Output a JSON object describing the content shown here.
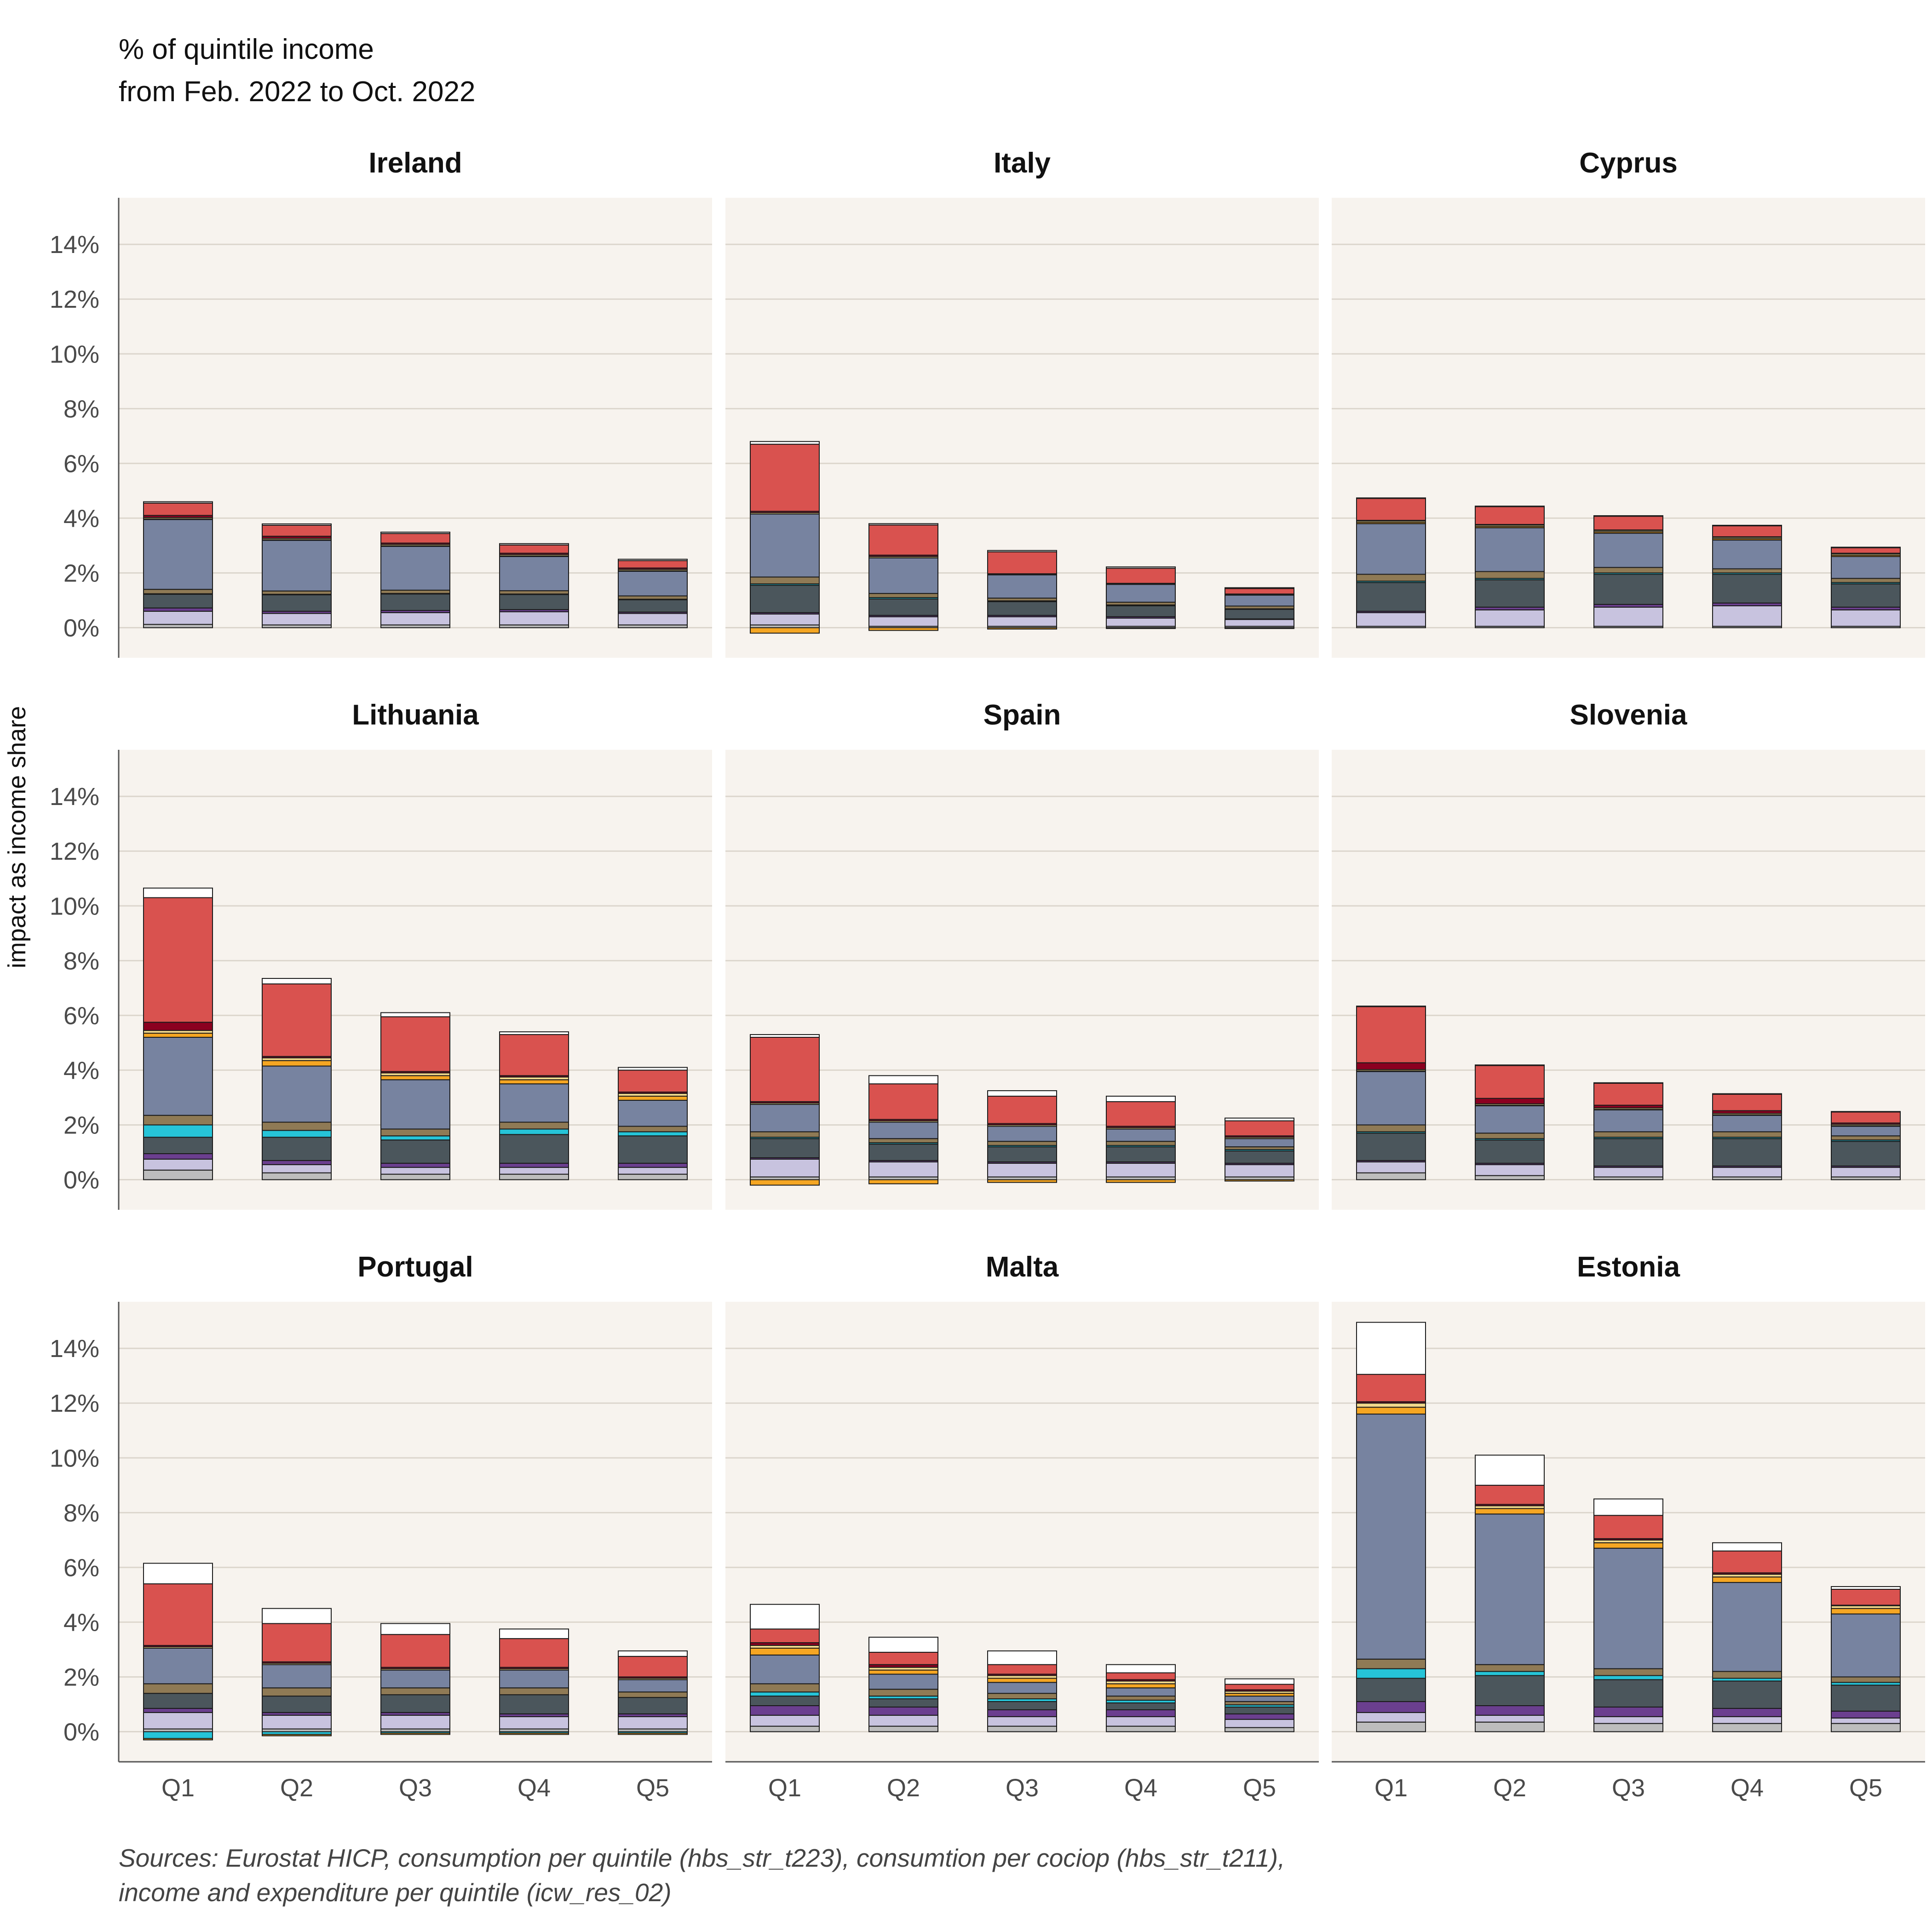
{
  "header": {
    "line1": "% of quintile income",
    "line2": "from Feb. 2022 to Oct. 2022"
  },
  "source": {
    "line1": "Sources: Eurostat HICP, consumption per quintile (hbs_str_t223), consumtion per cociop (hbs_str_t211),",
    "line2": "income and expenditure per quintile (icw_res_02)"
  },
  "chart_data": {
    "type": "bar",
    "stacked": true,
    "ylabel": "impact as income share",
    "ylim": [
      -1.1,
      15.7
    ],
    "yticks": [
      "0%",
      "2%",
      "4%",
      "6%",
      "8%",
      "10%",
      "12%",
      "14%"
    ],
    "categories": [
      "Q1",
      "Q2",
      "Q3",
      "Q4",
      "Q5"
    ],
    "grid": true,
    "panel_background": "#f7f3ee",
    "layer_colors": [
      "#bdbdbd",
      "#c8c3df",
      "#6b3f8f",
      "#4b565c",
      "#26c4d8",
      "#8f7a55",
      "#7783a0",
      "#f5a623",
      "#f3d98c",
      "#8b0020",
      "#d9524f",
      "#ffffff"
    ],
    "panels": [
      {
        "name": "Ireland",
        "layers": [
          [
            0.12,
            0.48,
            0.12,
            0.5,
            0.02,
            0.16,
            2.55,
            0.02,
            0.05,
            0.08,
            0.45,
            0.05
          ],
          [
            0.1,
            0.42,
            0.08,
            0.6,
            0.02,
            0.12,
            1.85,
            0.02,
            0.05,
            0.08,
            0.4,
            0.05
          ],
          [
            0.1,
            0.45,
            0.08,
            0.6,
            0.02,
            0.12,
            1.6,
            0.02,
            0.05,
            0.05,
            0.35,
            0.05
          ],
          [
            0.1,
            0.48,
            0.08,
            0.55,
            0.02,
            0.12,
            1.25,
            0.02,
            0.05,
            0.05,
            0.3,
            0.05
          ],
          [
            0.1,
            0.42,
            0.05,
            0.45,
            0.02,
            0.12,
            0.9,
            0.02,
            0.05,
            0.05,
            0.27,
            0.05
          ]
        ]
      },
      {
        "name": "Italy",
        "layers": [
          [
            0.1,
            0.4,
            0.05,
            1.0,
            0.05,
            0.25,
            2.3,
            -0.2,
            0.05,
            0.05,
            2.45,
            0.1
          ],
          [
            0.05,
            0.35,
            0.05,
            0.6,
            0.05,
            0.15,
            1.3,
            -0.1,
            0.05,
            0.05,
            1.1,
            0.05
          ],
          [
            0.05,
            0.35,
            0.05,
            0.5,
            0.03,
            0.1,
            0.85,
            -0.05,
            0.02,
            0.02,
            0.8,
            0.05
          ],
          [
            0.05,
            0.3,
            0.05,
            0.4,
            0.03,
            0.1,
            0.65,
            -0.03,
            0.02,
            0.02,
            0.55,
            0.05
          ],
          [
            0.05,
            0.25,
            0.02,
            0.35,
            0.02,
            0.1,
            0.4,
            -0.03,
            0.02,
            0.02,
            0.2,
            0.03
          ]
        ]
      },
      {
        "name": "Cyprus",
        "layers": [
          [
            0.05,
            0.5,
            0.05,
            1.05,
            0.05,
            0.25,
            1.85,
            0.05,
            0.05,
            0.02,
            0.8,
            0.02
          ],
          [
            0.05,
            0.6,
            0.1,
            1.0,
            0.05,
            0.25,
            1.6,
            0.05,
            0.05,
            0.02,
            0.65,
            0.02
          ],
          [
            0.05,
            0.7,
            0.1,
            1.1,
            0.05,
            0.2,
            1.25,
            0.05,
            0.05,
            0.02,
            0.5,
            0.02
          ],
          [
            0.05,
            0.75,
            0.1,
            1.05,
            0.05,
            0.15,
            1.05,
            0.05,
            0.05,
            0.02,
            0.4,
            0.02
          ],
          [
            0.05,
            0.6,
            0.1,
            0.85,
            0.05,
            0.15,
            0.8,
            0.05,
            0.05,
            0.02,
            0.2,
            0.02
          ]
        ]
      },
      {
        "name": "Lithuania",
        "layers": [
          [
            0.35,
            0.4,
            0.2,
            0.6,
            0.45,
            0.35,
            2.85,
            0.15,
            0.1,
            0.3,
            4.55,
            0.35
          ],
          [
            0.25,
            0.3,
            0.15,
            0.85,
            0.25,
            0.3,
            2.05,
            0.2,
            0.1,
            0.05,
            2.65,
            0.2
          ],
          [
            0.2,
            0.25,
            0.15,
            0.85,
            0.15,
            0.25,
            1.8,
            0.15,
            0.1,
            0.05,
            2.0,
            0.15
          ],
          [
            0.2,
            0.25,
            0.15,
            1.05,
            0.2,
            0.25,
            1.4,
            0.15,
            0.1,
            0.05,
            1.5,
            0.1
          ],
          [
            0.2,
            0.25,
            0.15,
            1.0,
            0.15,
            0.2,
            0.95,
            0.15,
            0.1,
            0.05,
            0.8,
            0.1
          ]
        ]
      },
      {
        "name": "Spain",
        "layers": [
          [
            0.1,
            0.65,
            0.05,
            0.7,
            0.05,
            0.2,
            1.0,
            -0.2,
            0.05,
            0.05,
            2.35,
            0.1
          ],
          [
            0.1,
            0.55,
            0.05,
            0.6,
            0.05,
            0.15,
            0.6,
            -0.15,
            0.05,
            0.05,
            1.3,
            0.3
          ],
          [
            0.1,
            0.5,
            0.05,
            0.55,
            0.05,
            0.15,
            0.55,
            -0.1,
            0.05,
            0.05,
            1.0,
            0.2
          ],
          [
            0.1,
            0.5,
            0.05,
            0.55,
            0.05,
            0.15,
            0.45,
            -0.1,
            0.05,
            0.05,
            0.9,
            0.2
          ],
          [
            0.1,
            0.45,
            0.05,
            0.45,
            0.05,
            0.1,
            0.3,
            -0.05,
            0.05,
            0.05,
            0.55,
            0.1
          ]
        ]
      },
      {
        "name": "Slovenia",
        "layers": [
          [
            0.25,
            0.4,
            0.05,
            1.0,
            0.05,
            0.25,
            1.95,
            0.02,
            0.05,
            0.25,
            2.05,
            0.02
          ],
          [
            0.15,
            0.4,
            0.05,
            0.85,
            0.05,
            0.2,
            1.0,
            0.02,
            0.05,
            0.2,
            1.2,
            0.02
          ],
          [
            0.1,
            0.35,
            0.05,
            1.0,
            0.05,
            0.2,
            0.8,
            0.02,
            0.05,
            0.1,
            0.8,
            0.02
          ],
          [
            0.1,
            0.35,
            0.05,
            1.0,
            0.05,
            0.2,
            0.6,
            0.02,
            0.05,
            0.1,
            0.6,
            0.02
          ],
          [
            0.1,
            0.35,
            0.05,
            0.9,
            0.05,
            0.15,
            0.35,
            0.02,
            0.05,
            0.05,
            0.4,
            0.02
          ]
        ]
      },
      {
        "name": "Portugal",
        "layers": [
          [
            0.1,
            0.6,
            0.15,
            0.55,
            -0.25,
            0.35,
            1.3,
            -0.05,
            0.05,
            0.05,
            2.25,
            0.75
          ],
          [
            0.1,
            0.5,
            0.1,
            0.6,
            -0.1,
            0.3,
            0.85,
            -0.05,
            0.05,
            0.05,
            1.4,
            0.55
          ],
          [
            0.1,
            0.5,
            0.1,
            0.65,
            -0.05,
            0.25,
            0.65,
            -0.05,
            0.05,
            0.05,
            1.2,
            0.4
          ],
          [
            0.1,
            0.45,
            0.1,
            0.7,
            -0.05,
            0.25,
            0.65,
            -0.05,
            0.05,
            0.05,
            1.05,
            0.35
          ],
          [
            0.1,
            0.45,
            0.1,
            0.6,
            -0.05,
            0.2,
            0.45,
            -0.05,
            0.05,
            0.05,
            0.75,
            0.2
          ]
        ]
      },
      {
        "name": "Malta",
        "layers": [
          [
            0.2,
            0.4,
            0.35,
            0.35,
            0.15,
            0.3,
            1.05,
            0.25,
            0.1,
            0.1,
            0.5,
            0.9
          ],
          [
            0.2,
            0.4,
            0.3,
            0.3,
            0.1,
            0.25,
            0.55,
            0.15,
            0.1,
            0.1,
            0.45,
            0.55
          ],
          [
            0.2,
            0.35,
            0.25,
            0.3,
            0.1,
            0.2,
            0.4,
            0.15,
            0.1,
            0.05,
            0.35,
            0.5
          ],
          [
            0.2,
            0.35,
            0.25,
            0.25,
            0.1,
            0.15,
            0.3,
            0.15,
            0.1,
            0.05,
            0.25,
            0.3
          ],
          [
            0.15,
            0.3,
            0.2,
            0.25,
            0.08,
            0.12,
            0.2,
            0.1,
            0.08,
            0.05,
            0.2,
            0.2
          ]
        ]
      },
      {
        "name": "Estonia",
        "layers": [
          [
            0.35,
            0.35,
            0.4,
            0.85,
            0.35,
            0.35,
            8.95,
            0.25,
            0.15,
            0.05,
            1.0,
            1.9
          ],
          [
            0.35,
            0.25,
            0.35,
            1.1,
            0.15,
            0.25,
            5.5,
            0.2,
            0.1,
            0.05,
            0.7,
            1.1
          ],
          [
            0.3,
            0.25,
            0.35,
            1.0,
            0.15,
            0.25,
            4.4,
            0.2,
            0.1,
            0.05,
            0.85,
            0.6
          ],
          [
            0.3,
            0.25,
            0.3,
            1.0,
            0.1,
            0.25,
            3.25,
            0.2,
            0.1,
            0.05,
            0.8,
            0.3
          ],
          [
            0.3,
            0.2,
            0.25,
            0.95,
            0.1,
            0.2,
            2.3,
            0.2,
            0.1,
            0.02,
            0.58,
            0.1
          ]
        ]
      }
    ]
  }
}
